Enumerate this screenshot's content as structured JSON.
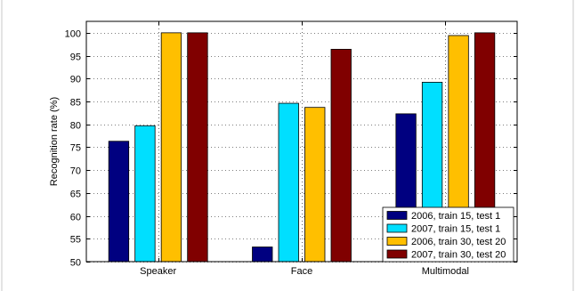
{
  "chart_data": {
    "type": "bar",
    "title": "",
    "xlabel": "",
    "ylabel": "Recognition rate (%)",
    "ylim": [
      50,
      102.5
    ],
    "yticks": [
      50,
      55,
      60,
      65,
      70,
      75,
      80,
      85,
      90,
      95,
      100
    ],
    "grid": "dotted",
    "legend_position": "bottom-right",
    "categories": [
      "Speaker",
      "Face",
      "Multimodal"
    ],
    "series": [
      {
        "name": "2006, train 15, test 1",
        "color": "#000080",
        "values": [
          76.3,
          53.2,
          82.3
        ]
      },
      {
        "name": "2007, train 15, test 1",
        "color": "#00DFFF",
        "values": [
          79.7,
          84.6,
          89.2
        ]
      },
      {
        "name": "2006, train 30, test 20",
        "color": "#FFBF00",
        "values": [
          100.0,
          83.7,
          99.4
        ]
      },
      {
        "name": "2007, train 30, test 20",
        "color": "#800000",
        "values": [
          100.0,
          96.4,
          100.0
        ]
      }
    ]
  }
}
